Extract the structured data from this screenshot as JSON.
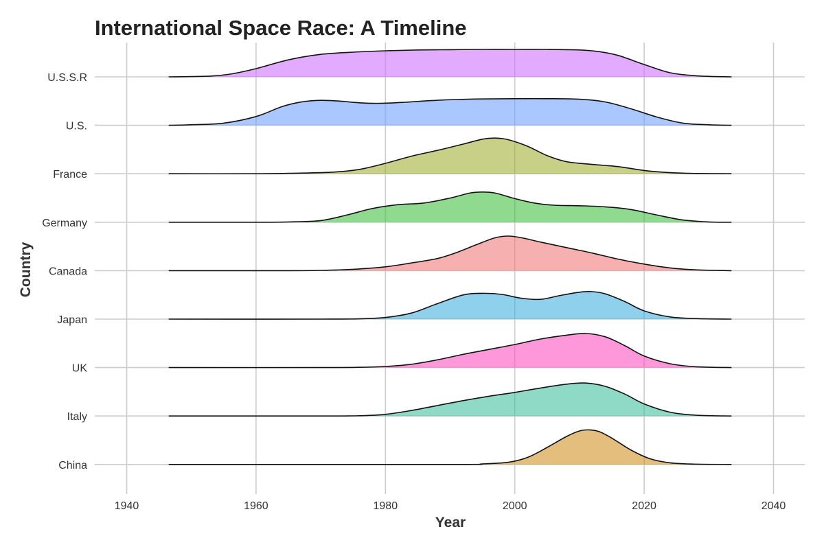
{
  "chart_data": {
    "type": "area",
    "subtype": "ridgeline",
    "title": "International Space Race: A Timeline",
    "xlabel": "Year",
    "ylabel": "Country",
    "xlim": [
      1935,
      2045
    ],
    "x_ticks": [
      1940,
      1960,
      1980,
      2000,
      2020,
      2040
    ],
    "x_tick_labels": [
      "1940",
      "1960",
      "1980",
      "2000",
      "2020",
      "2040"
    ],
    "grid": true,
    "legend": "none",
    "density_x_range": [
      1946.5,
      2033.5
    ],
    "series": [
      {
        "name": "U.S.S.R",
        "color": "#cc66ff",
        "points": [
          [
            1946.5,
            0
          ],
          [
            1950,
            0.01
          ],
          [
            1953,
            0.03
          ],
          [
            1956,
            0.1
          ],
          [
            1960,
            0.3
          ],
          [
            1965,
            0.62
          ],
          [
            1970,
            0.82
          ],
          [
            1975,
            0.9
          ],
          [
            1980,
            0.95
          ],
          [
            1985,
            0.98
          ],
          [
            1990,
            0.99
          ],
          [
            1995,
            1.0
          ],
          [
            2000,
            1.0
          ],
          [
            2005,
            1.0
          ],
          [
            2010,
            0.98
          ],
          [
            2013,
            0.92
          ],
          [
            2016,
            0.78
          ],
          [
            2020,
            0.45
          ],
          [
            2024,
            0.15
          ],
          [
            2028,
            0.04
          ],
          [
            2031,
            0.01
          ],
          [
            2033.5,
            0
          ]
        ]
      },
      {
        "name": "U.S.",
        "color": "#6699ff",
        "points": [
          [
            1946.5,
            0
          ],
          [
            1950,
            0.02
          ],
          [
            1955,
            0.08
          ],
          [
            1960,
            0.32
          ],
          [
            1964,
            0.68
          ],
          [
            1967,
            0.85
          ],
          [
            1970,
            0.91
          ],
          [
            1973,
            0.88
          ],
          [
            1976,
            0.82
          ],
          [
            1979,
            0.8
          ],
          [
            1983,
            0.84
          ],
          [
            1987,
            0.9
          ],
          [
            1991,
            0.94
          ],
          [
            1995,
            0.96
          ],
          [
            2000,
            0.97
          ],
          [
            2005,
            0.97
          ],
          [
            2010,
            0.95
          ],
          [
            2014,
            0.85
          ],
          [
            2018,
            0.6
          ],
          [
            2022,
            0.3
          ],
          [
            2026,
            0.08
          ],
          [
            2030,
            0.02
          ],
          [
            2033.5,
            0
          ]
        ]
      },
      {
        "name": "France",
        "color": "#99aa22",
        "points": [
          [
            1946.5,
            0
          ],
          [
            1960,
            0.0
          ],
          [
            1966,
            0.02
          ],
          [
            1972,
            0.06
          ],
          [
            1976,
            0.16
          ],
          [
            1980,
            0.38
          ],
          [
            1984,
            0.64
          ],
          [
            1988,
            0.85
          ],
          [
            1992,
            1.08
          ],
          [
            1995,
            1.26
          ],
          [
            1997,
            1.3
          ],
          [
            1999,
            1.24
          ],
          [
            2002,
            1.0
          ],
          [
            2005,
            0.66
          ],
          [
            2008,
            0.44
          ],
          [
            2012,
            0.34
          ],
          [
            2016,
            0.26
          ],
          [
            2020,
            0.12
          ],
          [
            2024,
            0.04
          ],
          [
            2028,
            0.01
          ],
          [
            2033.5,
            0
          ]
        ]
      },
      {
        "name": "Germany",
        "color": "#33bb33",
        "points": [
          [
            1946.5,
            0
          ],
          [
            1960,
            0.0
          ],
          [
            1965,
            0.01
          ],
          [
            1970,
            0.06
          ],
          [
            1974,
            0.26
          ],
          [
            1978,
            0.5
          ],
          [
            1982,
            0.64
          ],
          [
            1986,
            0.7
          ],
          [
            1990,
            0.88
          ],
          [
            1993,
            1.06
          ],
          [
            1995,
            1.1
          ],
          [
            1997,
            1.06
          ],
          [
            2000,
            0.86
          ],
          [
            2003,
            0.7
          ],
          [
            2006,
            0.62
          ],
          [
            2010,
            0.6
          ],
          [
            2014,
            0.56
          ],
          [
            2018,
            0.46
          ],
          [
            2022,
            0.26
          ],
          [
            2026,
            0.08
          ],
          [
            2030,
            0.01
          ],
          [
            2033.5,
            0
          ]
        ]
      },
      {
        "name": "Canada",
        "color": "#f07070",
        "points": [
          [
            1946.5,
            0
          ],
          [
            1965,
            0.0
          ],
          [
            1970,
            0.01
          ],
          [
            1975,
            0.05
          ],
          [
            1980,
            0.14
          ],
          [
            1984,
            0.28
          ],
          [
            1988,
            0.44
          ],
          [
            1991,
            0.66
          ],
          [
            1994,
            0.94
          ],
          [
            1997,
            1.2
          ],
          [
            1999,
            1.26
          ],
          [
            2001,
            1.2
          ],
          [
            2004,
            1.04
          ],
          [
            2008,
            0.84
          ],
          [
            2012,
            0.64
          ],
          [
            2016,
            0.42
          ],
          [
            2020,
            0.24
          ],
          [
            2024,
            0.1
          ],
          [
            2028,
            0.03
          ],
          [
            2033.5,
            0
          ]
        ]
      },
      {
        "name": "Japan",
        "color": "#33aadd",
        "points": [
          [
            1946.5,
            0
          ],
          [
            1970,
            0.0
          ],
          [
            1976,
            0.01
          ],
          [
            1980,
            0.06
          ],
          [
            1984,
            0.22
          ],
          [
            1988,
            0.56
          ],
          [
            1992,
            0.88
          ],
          [
            1995,
            0.94
          ],
          [
            1998,
            0.9
          ],
          [
            2001,
            0.76
          ],
          [
            2004,
            0.72
          ],
          [
            2007,
            0.86
          ],
          [
            2010,
            0.98
          ],
          [
            2012,
            1.0
          ],
          [
            2014,
            0.92
          ],
          [
            2017,
            0.64
          ],
          [
            2020,
            0.3
          ],
          [
            2024,
            0.08
          ],
          [
            2028,
            0.02
          ],
          [
            2033.5,
            0
          ]
        ]
      },
      {
        "name": "UK",
        "color": "#ff44bb",
        "points": [
          [
            1946.5,
            0
          ],
          [
            1970,
            0.0
          ],
          [
            1976,
            0.01
          ],
          [
            1980,
            0.04
          ],
          [
            1984,
            0.12
          ],
          [
            1988,
            0.28
          ],
          [
            1992,
            0.48
          ],
          [
            1996,
            0.66
          ],
          [
            2000,
            0.84
          ],
          [
            2004,
            1.04
          ],
          [
            2008,
            1.18
          ],
          [
            2011,
            1.24
          ],
          [
            2014,
            1.12
          ],
          [
            2017,
            0.8
          ],
          [
            2020,
            0.42
          ],
          [
            2024,
            0.14
          ],
          [
            2028,
            0.03
          ],
          [
            2033.5,
            0
          ]
        ]
      },
      {
        "name": "Italy",
        "color": "#33bb99",
        "points": [
          [
            1946.5,
            0
          ],
          [
            1970,
            0.0
          ],
          [
            1976,
            0.01
          ],
          [
            1980,
            0.06
          ],
          [
            1984,
            0.2
          ],
          [
            1988,
            0.38
          ],
          [
            1992,
            0.56
          ],
          [
            1996,
            0.72
          ],
          [
            2000,
            0.86
          ],
          [
            2004,
            1.02
          ],
          [
            2008,
            1.16
          ],
          [
            2011,
            1.2
          ],
          [
            2014,
            1.08
          ],
          [
            2017,
            0.8
          ],
          [
            2020,
            0.44
          ],
          [
            2024,
            0.14
          ],
          [
            2028,
            0.03
          ],
          [
            2033.5,
            0
          ]
        ]
      },
      {
        "name": "China",
        "color": "#cc8811",
        "points": [
          [
            1946.5,
            0
          ],
          [
            1990,
            0.0
          ],
          [
            1995,
            0.02
          ],
          [
            1999,
            0.08
          ],
          [
            2002,
            0.26
          ],
          [
            2005,
            0.62
          ],
          [
            2008,
            1.02
          ],
          [
            2010,
            1.22
          ],
          [
            2011.5,
            1.26
          ],
          [
            2013,
            1.2
          ],
          [
            2015,
            0.96
          ],
          [
            2018,
            0.52
          ],
          [
            2021,
            0.2
          ],
          [
            2024,
            0.06
          ],
          [
            2028,
            0.01
          ],
          [
            2033.5,
            0
          ]
        ]
      }
    ]
  }
}
